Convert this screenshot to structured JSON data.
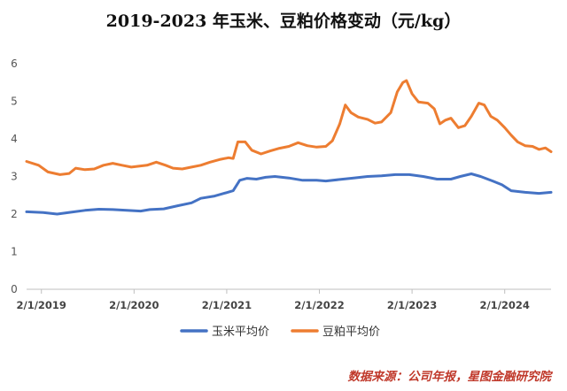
{
  "chart_data": {
    "type": "line",
    "title": "2019-2023 年玉米、豆粕价格变动（元/kg）",
    "xlabel": "",
    "ylabel": "",
    "ylim": [
      0,
      6
    ],
    "yticks": [
      "0",
      "1",
      "2",
      "3",
      "4",
      "5",
      "6"
    ],
    "xlim": [
      2018.92,
      2024.58
    ],
    "xtick_labels": [
      "2/1/2019",
      "2/1/2020",
      "2/1/2021",
      "2/1/2022",
      "2/1/2023",
      "2/1/2024"
    ],
    "xtick_values": [
      2019.08,
      2020.08,
      2021.08,
      2022.08,
      2023.08,
      2024.08
    ],
    "grid": false,
    "legend_position": "bottom",
    "series": [
      {
        "name": "玉米平均价",
        "color": "#4472C4",
        "points": [
          [
            2018.92,
            2.06
          ],
          [
            2019.1,
            2.04
          ],
          [
            2019.25,
            2.0
          ],
          [
            2019.4,
            2.05
          ],
          [
            2019.55,
            2.1
          ],
          [
            2019.7,
            2.13
          ],
          [
            2019.85,
            2.12
          ],
          [
            2020.0,
            2.1
          ],
          [
            2020.15,
            2.08
          ],
          [
            2020.25,
            2.12
          ],
          [
            2020.4,
            2.14
          ],
          [
            2020.55,
            2.22
          ],
          [
            2020.7,
            2.3
          ],
          [
            2020.8,
            2.42
          ],
          [
            2020.95,
            2.48
          ],
          [
            2021.05,
            2.55
          ],
          [
            2021.15,
            2.62
          ],
          [
            2021.22,
            2.9
          ],
          [
            2021.3,
            2.95
          ],
          [
            2021.4,
            2.93
          ],
          [
            2021.5,
            2.98
          ],
          [
            2021.6,
            3.0
          ],
          [
            2021.75,
            2.96
          ],
          [
            2021.9,
            2.9
          ],
          [
            2022.05,
            2.9
          ],
          [
            2022.15,
            2.88
          ],
          [
            2022.3,
            2.92
          ],
          [
            2022.45,
            2.96
          ],
          [
            2022.6,
            3.0
          ],
          [
            2022.75,
            3.02
          ],
          [
            2022.9,
            3.05
          ],
          [
            2023.05,
            3.05
          ],
          [
            2023.2,
            3.0
          ],
          [
            2023.35,
            2.93
          ],
          [
            2023.5,
            2.93
          ],
          [
            2023.6,
            3.0
          ],
          [
            2023.72,
            3.07
          ],
          [
            2023.82,
            3.0
          ],
          [
            2023.95,
            2.88
          ],
          [
            2024.05,
            2.78
          ],
          [
            2024.15,
            2.62
          ],
          [
            2024.3,
            2.58
          ],
          [
            2024.45,
            2.55
          ],
          [
            2024.58,
            2.58
          ]
        ]
      },
      {
        "name": "豆粕平均价",
        "color": "#ED7D31",
        "points": [
          [
            2018.92,
            3.4
          ],
          [
            2019.05,
            3.3
          ],
          [
            2019.15,
            3.12
          ],
          [
            2019.28,
            3.05
          ],
          [
            2019.38,
            3.08
          ],
          [
            2019.45,
            3.22
          ],
          [
            2019.55,
            3.18
          ],
          [
            2019.65,
            3.2
          ],
          [
            2019.75,
            3.3
          ],
          [
            2019.85,
            3.35
          ],
          [
            2019.95,
            3.3
          ],
          [
            2020.05,
            3.25
          ],
          [
            2020.15,
            3.28
          ],
          [
            2020.22,
            3.3
          ],
          [
            2020.32,
            3.38
          ],
          [
            2020.42,
            3.3
          ],
          [
            2020.5,
            3.22
          ],
          [
            2020.6,
            3.2
          ],
          [
            2020.7,
            3.25
          ],
          [
            2020.8,
            3.3
          ],
          [
            2020.9,
            3.38
          ],
          [
            2021.0,
            3.45
          ],
          [
            2021.1,
            3.5
          ],
          [
            2021.15,
            3.48
          ],
          [
            2021.2,
            3.92
          ],
          [
            2021.28,
            3.92
          ],
          [
            2021.35,
            3.7
          ],
          [
            2021.45,
            3.6
          ],
          [
            2021.55,
            3.68
          ],
          [
            2021.65,
            3.75
          ],
          [
            2021.75,
            3.8
          ],
          [
            2021.85,
            3.9
          ],
          [
            2021.95,
            3.82
          ],
          [
            2022.05,
            3.78
          ],
          [
            2022.15,
            3.8
          ],
          [
            2022.22,
            3.95
          ],
          [
            2022.3,
            4.4
          ],
          [
            2022.36,
            4.9
          ],
          [
            2022.42,
            4.7
          ],
          [
            2022.5,
            4.58
          ],
          [
            2022.6,
            4.52
          ],
          [
            2022.68,
            4.42
          ],
          [
            2022.75,
            4.45
          ],
          [
            2022.85,
            4.7
          ],
          [
            2022.92,
            5.25
          ],
          [
            2022.98,
            5.5
          ],
          [
            2023.02,
            5.55
          ],
          [
            2023.08,
            5.2
          ],
          [
            2023.15,
            4.98
          ],
          [
            2023.25,
            4.95
          ],
          [
            2023.32,
            4.8
          ],
          [
            2023.38,
            4.4
          ],
          [
            2023.44,
            4.5
          ],
          [
            2023.5,
            4.55
          ],
          [
            2023.58,
            4.3
          ],
          [
            2023.65,
            4.35
          ],
          [
            2023.72,
            4.6
          ],
          [
            2023.8,
            4.95
          ],
          [
            2023.86,
            4.9
          ],
          [
            2023.93,
            4.6
          ],
          [
            2024.0,
            4.5
          ],
          [
            2024.08,
            4.3
          ],
          [
            2024.15,
            4.1
          ],
          [
            2024.22,
            3.92
          ],
          [
            2024.3,
            3.82
          ],
          [
            2024.38,
            3.8
          ],
          [
            2024.45,
            3.72
          ],
          [
            2024.52,
            3.76
          ],
          [
            2024.58,
            3.66
          ]
        ]
      }
    ]
  },
  "source_note": "数据来源：公司年报，星图金融研究院"
}
